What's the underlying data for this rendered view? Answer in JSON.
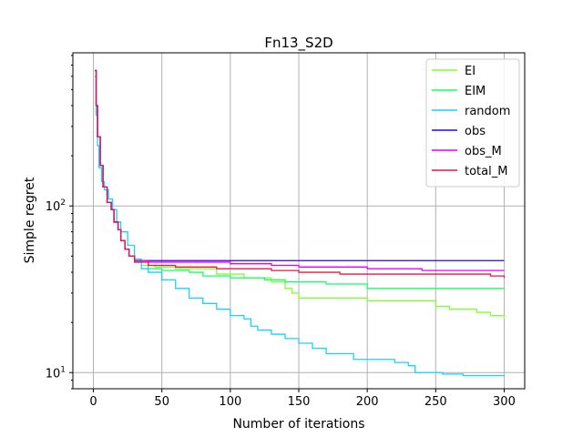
{
  "chart_data": {
    "type": "line",
    "title": "Fn13_S2D",
    "xlabel": "Number of iterations",
    "ylabel": "Simple regret",
    "xscale": "linear",
    "yscale": "log",
    "xlim": [
      -15,
      315
    ],
    "ylim": [
      8,
      830
    ],
    "grid": true,
    "legend_position": "top-right",
    "x_ticks": [
      0,
      50,
      100,
      150,
      200,
      250,
      300
    ],
    "y_ticks": [
      {
        "value": 10,
        "base": "10",
        "exp": "1"
      },
      {
        "value": 100,
        "base": "10",
        "exp": "2"
      }
    ],
    "series": [
      {
        "name": "EI",
        "color": "#80ff33",
        "points": [
          [
            1,
            650
          ],
          [
            2,
            400
          ],
          [
            3,
            260
          ],
          [
            5,
            175
          ],
          [
            7,
            130
          ],
          [
            10,
            105
          ],
          [
            13,
            95
          ],
          [
            15,
            80
          ],
          [
            18,
            72
          ],
          [
            20,
            62
          ],
          [
            23,
            55
          ],
          [
            26,
            50
          ],
          [
            30,
            46
          ],
          [
            35,
            44
          ],
          [
            45,
            43
          ],
          [
            60,
            42
          ],
          [
            90,
            39
          ],
          [
            110,
            37
          ],
          [
            120,
            37
          ],
          [
            130,
            35
          ],
          [
            140,
            32
          ],
          [
            145,
            30
          ],
          [
            150,
            28
          ],
          [
            200,
            27
          ],
          [
            240,
            27
          ],
          [
            250,
            25
          ],
          [
            260,
            24
          ],
          [
            280,
            23
          ],
          [
            290,
            22
          ],
          [
            300,
            21
          ]
        ]
      },
      {
        "name": "EIM",
        "color": "#1aff66",
        "points": [
          [
            1,
            650
          ],
          [
            2,
            400
          ],
          [
            3,
            260
          ],
          [
            5,
            175
          ],
          [
            7,
            130
          ],
          [
            10,
            105
          ],
          [
            13,
            95
          ],
          [
            15,
            80
          ],
          [
            18,
            72
          ],
          [
            20,
            62
          ],
          [
            23,
            55
          ],
          [
            26,
            50
          ],
          [
            30,
            46
          ],
          [
            40,
            42
          ],
          [
            50,
            41
          ],
          [
            70,
            40
          ],
          [
            80,
            38
          ],
          [
            100,
            37
          ],
          [
            125,
            36
          ],
          [
            140,
            35
          ],
          [
            170,
            34
          ],
          [
            200,
            32
          ],
          [
            250,
            32
          ],
          [
            300,
            32
          ]
        ]
      },
      {
        "name": "random",
        "color": "#1ad1ff",
        "points": [
          [
            1,
            600
          ],
          [
            2,
            350
          ],
          [
            3,
            230
          ],
          [
            4,
            170
          ],
          [
            6,
            140
          ],
          [
            8,
            125
          ],
          [
            11,
            110
          ],
          [
            14,
            95
          ],
          [
            17,
            80
          ],
          [
            20,
            70
          ],
          [
            25,
            58
          ],
          [
            30,
            48
          ],
          [
            35,
            42
          ],
          [
            40,
            40
          ],
          [
            50,
            36
          ],
          [
            60,
            32
          ],
          [
            70,
            28
          ],
          [
            80,
            26
          ],
          [
            90,
            24
          ],
          [
            100,
            22
          ],
          [
            110,
            21
          ],
          [
            115,
            19
          ],
          [
            120,
            18
          ],
          [
            130,
            17
          ],
          [
            140,
            16
          ],
          [
            150,
            15
          ],
          [
            160,
            14
          ],
          [
            170,
            13
          ],
          [
            180,
            13
          ],
          [
            190,
            12
          ],
          [
            200,
            12
          ],
          [
            210,
            12
          ],
          [
            220,
            11.5
          ],
          [
            230,
            11
          ],
          [
            235,
            10
          ],
          [
            245,
            10
          ],
          [
            255,
            9.8
          ],
          [
            270,
            9.6
          ],
          [
            300,
            9.5
          ]
        ]
      },
      {
        "name": "obs",
        "color": "#3300e6",
        "points": [
          [
            1,
            650
          ],
          [
            2,
            400
          ],
          [
            3,
            260
          ],
          [
            5,
            175
          ],
          [
            7,
            130
          ],
          [
            10,
            105
          ],
          [
            13,
            95
          ],
          [
            15,
            80
          ],
          [
            18,
            72
          ],
          [
            20,
            62
          ],
          [
            23,
            55
          ],
          [
            26,
            50
          ],
          [
            30,
            47
          ],
          [
            300,
            47
          ]
        ]
      },
      {
        "name": "obs_M",
        "color": "#e600ff",
        "points": [
          [
            1,
            650
          ],
          [
            2,
            400
          ],
          [
            3,
            260
          ],
          [
            5,
            175
          ],
          [
            7,
            130
          ],
          [
            10,
            105
          ],
          [
            13,
            95
          ],
          [
            15,
            80
          ],
          [
            18,
            72
          ],
          [
            20,
            62
          ],
          [
            23,
            55
          ],
          [
            26,
            50
          ],
          [
            30,
            47
          ],
          [
            40,
            46
          ],
          [
            100,
            45
          ],
          [
            130,
            44
          ],
          [
            150,
            43
          ],
          [
            200,
            42
          ],
          [
            240,
            41
          ],
          [
            300,
            41
          ]
        ]
      },
      {
        "name": "total_M",
        "color": "#e6194b",
        "points": [
          [
            1,
            650
          ],
          [
            2,
            400
          ],
          [
            3,
            260
          ],
          [
            5,
            175
          ],
          [
            7,
            130
          ],
          [
            10,
            105
          ],
          [
            13,
            95
          ],
          [
            15,
            80
          ],
          [
            18,
            72
          ],
          [
            20,
            62
          ],
          [
            23,
            55
          ],
          [
            26,
            50
          ],
          [
            30,
            46
          ],
          [
            40,
            44
          ],
          [
            60,
            43
          ],
          [
            90,
            42
          ],
          [
            130,
            41
          ],
          [
            150,
            40
          ],
          [
            180,
            39
          ],
          [
            250,
            39
          ],
          [
            290,
            38
          ],
          [
            300,
            37
          ]
        ]
      }
    ]
  }
}
